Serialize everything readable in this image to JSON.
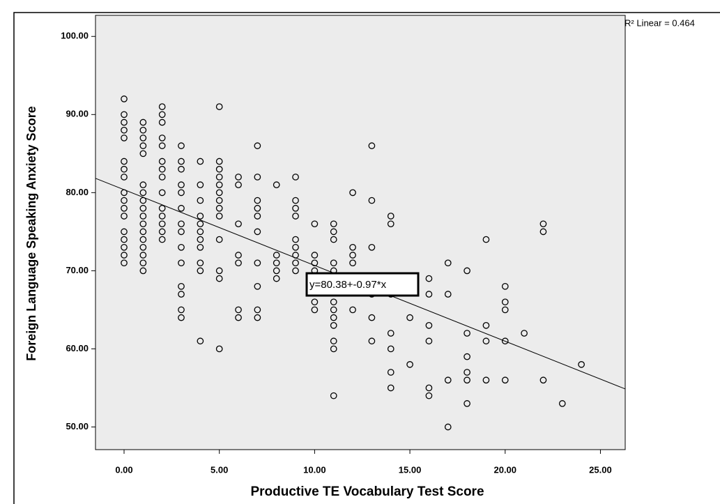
{
  "chart_data": {
    "type": "scatter",
    "xlabel": "Productive TE Vocabulary Test Score",
    "ylabel": "Foreign Language Speaking Anxiety Score",
    "r2_label": "R² Linear = 0.464",
    "fit": {
      "intercept": 80.38,
      "slope": -0.97,
      "label": "y=80.38+-0.97*x"
    },
    "xlim": [
      -1.5,
      26.3
    ],
    "ylim": [
      47.1,
      102.7
    ],
    "xticks": [
      {
        "value": 0,
        "label": "0.00"
      },
      {
        "value": 5,
        "label": "5.00"
      },
      {
        "value": 10,
        "label": "10.00"
      },
      {
        "value": 15,
        "label": "15.00"
      },
      {
        "value": 20,
        "label": "20.00"
      },
      {
        "value": 25,
        "label": "25.00"
      }
    ],
    "yticks": [
      {
        "value": 50,
        "label": "50.00"
      },
      {
        "value": 60,
        "label": "60.00"
      },
      {
        "value": 70,
        "label": "70.00"
      },
      {
        "value": 80,
        "label": "80.00"
      },
      {
        "value": 90,
        "label": "90.00"
      },
      {
        "value": 100,
        "label": "100.00"
      }
    ],
    "color": "#000000",
    "x": [
      0,
      0,
      0,
      0,
      0,
      0,
      0,
      0,
      0,
      0,
      0,
      0,
      0,
      0,
      0,
      0,
      0,
      1,
      1,
      1,
      1,
      1,
      1,
      1,
      1,
      1,
      1,
      1,
      1,
      1,
      1,
      1,
      1,
      1,
      2,
      2,
      2,
      2,
      2,
      2,
      2,
      2,
      2,
      2,
      2,
      2,
      2,
      2,
      3,
      3,
      3,
      3,
      3,
      3,
      3,
      3,
      3,
      3,
      3,
      3,
      3,
      3,
      4,
      4,
      4,
      4,
      4,
      4,
      4,
      4,
      4,
      4,
      4,
      5,
      5,
      5,
      5,
      5,
      5,
      5,
      5,
      5,
      5,
      5,
      5,
      5,
      6,
      6,
      6,
      6,
      6,
      6,
      6,
      7,
      7,
      7,
      7,
      7,
      7,
      7,
      7,
      7,
      7,
      8,
      8,
      8,
      8,
      8,
      9,
      9,
      9,
      9,
      9,
      9,
      9,
      9,
      9,
      10,
      10,
      10,
      10,
      10,
      10,
      11,
      11,
      11,
      11,
      11,
      11,
      11,
      11,
      11,
      11,
      11,
      11,
      11,
      11,
      12,
      12,
      12,
      12,
      12,
      13,
      13,
      13,
      13,
      13,
      13,
      14,
      14,
      14,
      14,
      14,
      14,
      14,
      15,
      15,
      16,
      16,
      16,
      16,
      16,
      16,
      17,
      17,
      17,
      17,
      18,
      18,
      18,
      18,
      18,
      18,
      19,
      19,
      19,
      19,
      20,
      20,
      20,
      20,
      20,
      21,
      22,
      22,
      22,
      23,
      24
    ],
    "values": [
      92,
      90,
      89,
      88,
      87,
      84,
      83,
      82,
      80,
      79,
      78,
      77,
      75,
      74,
      73,
      72,
      71,
      89,
      88,
      87,
      86,
      85,
      81,
      80,
      79,
      78,
      77,
      76,
      75,
      74,
      73,
      72,
      71,
      70,
      91,
      90,
      89,
      87,
      86,
      84,
      83,
      82,
      80,
      78,
      77,
      76,
      75,
      74,
      86,
      84,
      83,
      81,
      80,
      78,
      76,
      75,
      73,
      71,
      68,
      67,
      65,
      64,
      84,
      81,
      79,
      77,
      76,
      75,
      74,
      73,
      71,
      70,
      61,
      91,
      84,
      83,
      82,
      81,
      80,
      79,
      78,
      77,
      74,
      70,
      69,
      60,
      82,
      81,
      76,
      72,
      71,
      65,
      64,
      86,
      82,
      79,
      78,
      77,
      75,
      71,
      68,
      65,
      64,
      81,
      72,
      71,
      70,
      69,
      82,
      79,
      78,
      77,
      74,
      73,
      72,
      71,
      70,
      76,
      72,
      71,
      70,
      66,
      65,
      76,
      75,
      74,
      71,
      70,
      69,
      68,
      66,
      65,
      64,
      63,
      61,
      60,
      54,
      80,
      73,
      72,
      71,
      65,
      86,
      79,
      73,
      67,
      64,
      61,
      77,
      76,
      67,
      62,
      60,
      57,
      55,
      64,
      58,
      69,
      67,
      63,
      61,
      55,
      54,
      71,
      67,
      56,
      50,
      70,
      62,
      59,
      57,
      56,
      53,
      74,
      63,
      61,
      56,
      68,
      66,
      65,
      61,
      56,
      62,
      76,
      75,
      56,
      53,
      58
    ]
  }
}
